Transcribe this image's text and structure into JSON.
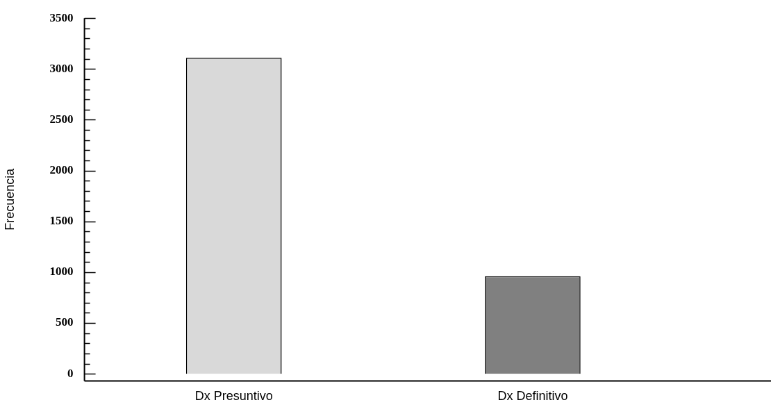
{
  "chart_data": {
    "type": "bar",
    "ylabel": "Frecuencia",
    "categories": [
      "Dx Presuntivo",
      "Dx Definitivo"
    ],
    "values": [
      3110,
      960
    ],
    "colors": [
      "#d9d9d9",
      "#808080"
    ],
    "ylim": [
      -70,
      3500
    ],
    "yticks": [
      0,
      {
        "value": 100,
        "label": null
      },
      {
        "value": 200,
        "label": null
      },
      {
        "value": 300,
        "label": null
      },
      {
        "value": 400,
        "label": null
      },
      500,
      {
        "value": 600,
        "label": null
      },
      {
        "value": 700,
        "label": null
      },
      {
        "value": 800,
        "label": null
      },
      {
        "value": 900,
        "label": null
      },
      1000,
      {
        "value": 1100,
        "label": null
      },
      {
        "value": 1200,
        "label": null
      },
      {
        "value": 1300,
        "label": null
      },
      {
        "value": 1400,
        "label": null
      },
      1500,
      {
        "value": 1600,
        "label": null
      },
      {
        "value": 1700,
        "label": null
      },
      {
        "value": 1800,
        "label": null
      },
      {
        "value": 1900,
        "label": null
      },
      2000,
      {
        "value": 2100,
        "label": null
      },
      {
        "value": 2200,
        "label": null
      },
      {
        "value": 2300,
        "label": null
      },
      {
        "value": 2400,
        "label": null
      },
      2500,
      {
        "value": 2600,
        "label": null
      },
      {
        "value": 2700,
        "label": null
      },
      {
        "value": 2800,
        "label": null
      },
      {
        "value": 2900,
        "label": null
      },
      3000,
      {
        "value": 3100,
        "label": null
      },
      {
        "value": 3200,
        "label": null
      },
      {
        "value": 3300,
        "label": null
      },
      {
        "value": 3400,
        "label": null
      },
      3500
    ],
    "grid": false,
    "legend": false
  }
}
